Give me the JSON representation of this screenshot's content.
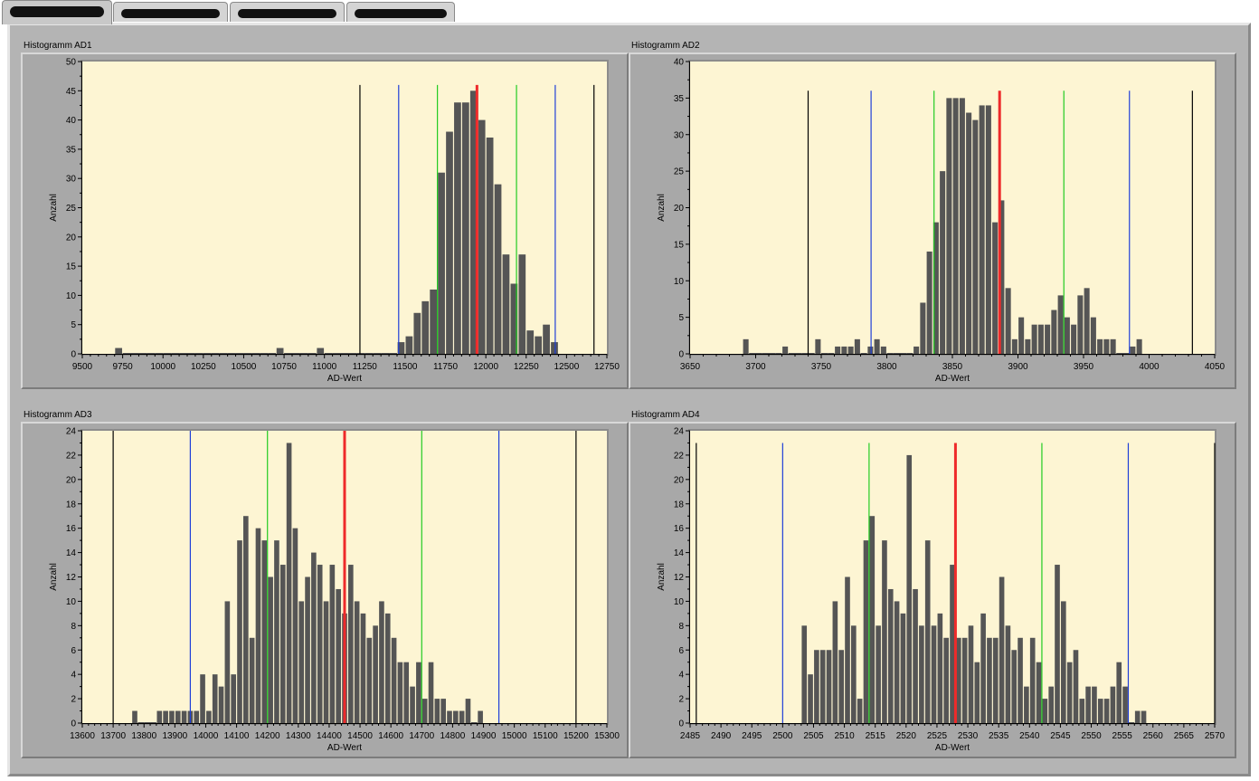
{
  "tabs": [
    {
      "label": ""
    },
    {
      "label": ""
    },
    {
      "label": ""
    },
    {
      "label": ""
    }
  ],
  "charts": [
    {
      "title": "Histogramm AD1",
      "chart_data": {
        "type": "bar",
        "xlabel": "AD-Wert",
        "ylabel": "Anzahl",
        "xlim": [
          9500,
          12750
        ],
        "ylim": [
          0,
          50
        ],
        "xticks": [
          9500,
          9750,
          10000,
          10250,
          10500,
          10750,
          11000,
          11250,
          11500,
          11750,
          12000,
          12250,
          12500,
          12750
        ],
        "yticks": [
          0,
          5,
          10,
          15,
          20,
          25,
          30,
          35,
          40,
          45,
          50
        ],
        "bin_width": 50,
        "bins": [
          [
            9700,
            1
          ],
          [
            9750,
            0
          ],
          [
            9800,
            0
          ],
          [
            9850,
            0
          ],
          [
            9900,
            0
          ],
          [
            9950,
            0
          ],
          [
            10000,
            0
          ],
          [
            10050,
            0
          ],
          [
            10100,
            0
          ],
          [
            10150,
            0
          ],
          [
            10200,
            0
          ],
          [
            10250,
            0
          ],
          [
            10300,
            0
          ],
          [
            10350,
            0
          ],
          [
            10400,
            0
          ],
          [
            10450,
            0
          ],
          [
            10500,
            0
          ],
          [
            10550,
            0
          ],
          [
            10600,
            0
          ],
          [
            10650,
            0
          ],
          [
            10700,
            1
          ],
          [
            10750,
            0
          ],
          [
            10800,
            0
          ],
          [
            10850,
            0
          ],
          [
            10900,
            0
          ],
          [
            10950,
            1
          ],
          [
            11000,
            0
          ],
          [
            11050,
            0
          ],
          [
            11100,
            0
          ],
          [
            11150,
            0
          ],
          [
            11200,
            0
          ],
          [
            11250,
            0
          ],
          [
            11300,
            0
          ],
          [
            11350,
            0
          ],
          [
            11400,
            0
          ],
          [
            11450,
            2
          ],
          [
            11500,
            3
          ],
          [
            11550,
            7
          ],
          [
            11600,
            9
          ],
          [
            11650,
            11
          ],
          [
            11700,
            31
          ],
          [
            11750,
            38
          ],
          [
            11800,
            43
          ],
          [
            11850,
            43
          ],
          [
            11900,
            45
          ],
          [
            11950,
            40
          ],
          [
            12000,
            37
          ],
          [
            12050,
            29
          ],
          [
            12100,
            17
          ],
          [
            12150,
            12
          ],
          [
            12200,
            17
          ],
          [
            12250,
            4
          ],
          [
            12300,
            3
          ],
          [
            12350,
            5
          ],
          [
            12400,
            2
          ]
        ],
        "markers": [
          {
            "x": 11220,
            "color": "#000000"
          },
          {
            "x": 11460,
            "color": "#1f3fd8"
          },
          {
            "x": 11700,
            "color": "#22cc22"
          },
          {
            "x": 11945,
            "color": "#ee2a2a"
          },
          {
            "x": 12190,
            "color": "#22cc22"
          },
          {
            "x": 12430,
            "color": "#1f3fd8"
          },
          {
            "x": 12670,
            "color": "#000000"
          }
        ],
        "marker_top": 46
      }
    },
    {
      "title": "Histogramm AD2",
      "chart_data": {
        "type": "bar",
        "xlabel": "AD-Wert",
        "ylabel": "Anzahl",
        "xlim": [
          3650,
          4050
        ],
        "ylim": [
          0,
          40
        ],
        "xticks": [
          3650,
          3700,
          3750,
          3800,
          3850,
          3900,
          3950,
          4000,
          4050
        ],
        "yticks": [
          0,
          5,
          10,
          15,
          20,
          25,
          30,
          35,
          40
        ],
        "bin_width": 5,
        "bins": [
          [
            3690,
            2
          ],
          [
            3695,
            0
          ],
          [
            3700,
            0
          ],
          [
            3705,
            0
          ],
          [
            3710,
            0
          ],
          [
            3715,
            0
          ],
          [
            3720,
            1
          ],
          [
            3725,
            0
          ],
          [
            3730,
            0
          ],
          [
            3735,
            0
          ],
          [
            3740,
            0
          ],
          [
            3745,
            2
          ],
          [
            3750,
            0
          ],
          [
            3755,
            0
          ],
          [
            3760,
            1
          ],
          [
            3765,
            1
          ],
          [
            3770,
            1
          ],
          [
            3775,
            2
          ],
          [
            3780,
            0
          ],
          [
            3785,
            1
          ],
          [
            3790,
            2
          ],
          [
            3795,
            1
          ],
          [
            3800,
            0
          ],
          [
            3805,
            0
          ],
          [
            3810,
            0
          ],
          [
            3815,
            0
          ],
          [
            3820,
            1
          ],
          [
            3825,
            7
          ],
          [
            3830,
            14
          ],
          [
            3835,
            18
          ],
          [
            3840,
            25
          ],
          [
            3845,
            35
          ],
          [
            3850,
            35
          ],
          [
            3855,
            35
          ],
          [
            3860,
            33
          ],
          [
            3865,
            32
          ],
          [
            3870,
            34
          ],
          [
            3875,
            34
          ],
          [
            3880,
            18
          ],
          [
            3885,
            21
          ],
          [
            3890,
            9
          ],
          [
            3895,
            2
          ],
          [
            3900,
            5
          ],
          [
            3905,
            2
          ],
          [
            3910,
            4
          ],
          [
            3915,
            4
          ],
          [
            3920,
            4
          ],
          [
            3925,
            6
          ],
          [
            3930,
            8
          ],
          [
            3935,
            5
          ],
          [
            3940,
            4
          ],
          [
            3945,
            8
          ],
          [
            3950,
            9
          ],
          [
            3955,
            5
          ],
          [
            3960,
            2
          ],
          [
            3965,
            2
          ],
          [
            3970,
            2
          ],
          [
            3975,
            0
          ],
          [
            3980,
            0
          ],
          [
            3985,
            1
          ],
          [
            3990,
            2
          ]
        ],
        "markers": [
          {
            "x": 3740,
            "color": "#000000"
          },
          {
            "x": 3788,
            "color": "#1f3fd8"
          },
          {
            "x": 3836,
            "color": "#22cc22"
          },
          {
            "x": 3886,
            "color": "#ee2a2a"
          },
          {
            "x": 3935,
            "color": "#22cc22"
          },
          {
            "x": 3985,
            "color": "#1f3fd8"
          },
          {
            "x": 4033,
            "color": "#000000"
          }
        ],
        "marker_top": 36
      }
    },
    {
      "title": "Histogramm AD3",
      "chart_data": {
        "type": "bar",
        "xlabel": "AD-Wert",
        "ylabel": "Anzahl",
        "xlim": [
          13600,
          15300
        ],
        "ylim": [
          0,
          24
        ],
        "xticks": [
          13600,
          13700,
          13800,
          13900,
          14000,
          14100,
          14200,
          14300,
          14400,
          14500,
          14600,
          14700,
          14800,
          14900,
          15000,
          15100,
          15200,
          15300
        ],
        "yticks": [
          0,
          2,
          4,
          6,
          8,
          10,
          12,
          14,
          16,
          18,
          20,
          22,
          24
        ],
        "bin_width": 20,
        "bins": [
          [
            13760,
            1
          ],
          [
            13780,
            0
          ],
          [
            13800,
            0
          ],
          [
            13820,
            0
          ],
          [
            13840,
            1
          ],
          [
            13860,
            1
          ],
          [
            13880,
            1
          ],
          [
            13900,
            1
          ],
          [
            13920,
            1
          ],
          [
            13940,
            1
          ],
          [
            13960,
            1
          ],
          [
            13980,
            4
          ],
          [
            14000,
            1
          ],
          [
            14020,
            4
          ],
          [
            14040,
            3
          ],
          [
            14060,
            10
          ],
          [
            14080,
            4
          ],
          [
            14100,
            15
          ],
          [
            14120,
            17
          ],
          [
            14140,
            7
          ],
          [
            14160,
            16
          ],
          [
            14180,
            15
          ],
          [
            14200,
            12
          ],
          [
            14220,
            15
          ],
          [
            14240,
            13
          ],
          [
            14260,
            23
          ],
          [
            14280,
            16
          ],
          [
            14300,
            10
          ],
          [
            14320,
            12
          ],
          [
            14340,
            14
          ],
          [
            14360,
            13
          ],
          [
            14380,
            10
          ],
          [
            14400,
            13
          ],
          [
            14420,
            11
          ],
          [
            14440,
            9
          ],
          [
            14460,
            13
          ],
          [
            14480,
            10
          ],
          [
            14500,
            9
          ],
          [
            14520,
            7
          ],
          [
            14540,
            8
          ],
          [
            14560,
            10
          ],
          [
            14580,
            9
          ],
          [
            14600,
            7
          ],
          [
            14620,
            5
          ],
          [
            14640,
            5
          ],
          [
            14660,
            3
          ],
          [
            14680,
            5
          ],
          [
            14700,
            2
          ],
          [
            14720,
            5
          ],
          [
            14740,
            2
          ],
          [
            14760,
            2
          ],
          [
            14780,
            1
          ],
          [
            14800,
            1
          ],
          [
            14820,
            1
          ],
          [
            14840,
            2
          ],
          [
            14860,
            0
          ],
          [
            14880,
            1
          ]
        ],
        "markers": [
          {
            "x": 13700,
            "color": "#000000"
          },
          {
            "x": 13950,
            "color": "#1f3fd8"
          },
          {
            "x": 14200,
            "color": "#22cc22"
          },
          {
            "x": 14450,
            "color": "#ee2a2a"
          },
          {
            "x": 14700,
            "color": "#22cc22"
          },
          {
            "x": 14950,
            "color": "#1f3fd8"
          },
          {
            "x": 15200,
            "color": "#000000"
          }
        ],
        "marker_top": 24
      }
    },
    {
      "title": "Histogramm AD4",
      "chart_data": {
        "type": "bar",
        "xlabel": "AD-Wert",
        "ylabel": "Anzahl",
        "xlim": [
          2485,
          2570
        ],
        "ylim": [
          0,
          24
        ],
        "xticks": [
          2485,
          2490,
          2495,
          2500,
          2505,
          2510,
          2515,
          2520,
          2525,
          2530,
          2535,
          2540,
          2545,
          2550,
          2555,
          2560,
          2565,
          2570
        ],
        "yticks": [
          0,
          2,
          4,
          6,
          8,
          10,
          12,
          14,
          16,
          18,
          20,
          22,
          24
        ],
        "bin_width": 1,
        "bins": [
          [
            2503,
            8
          ],
          [
            2504,
            4
          ],
          [
            2505,
            6
          ],
          [
            2506,
            6
          ],
          [
            2507,
            6
          ],
          [
            2508,
            10
          ],
          [
            2509,
            6
          ],
          [
            2510,
            12
          ],
          [
            2511,
            8
          ],
          [
            2512,
            2
          ],
          [
            2513,
            15
          ],
          [
            2514,
            17
          ],
          [
            2515,
            8
          ],
          [
            2516,
            15
          ],
          [
            2517,
            11
          ],
          [
            2518,
            10
          ],
          [
            2519,
            9
          ],
          [
            2520,
            22
          ],
          [
            2521,
            11
          ],
          [
            2522,
            8
          ],
          [
            2523,
            15
          ],
          [
            2524,
            8
          ],
          [
            2525,
            9
          ],
          [
            2526,
            7
          ],
          [
            2527,
            13
          ],
          [
            2528,
            7
          ],
          [
            2529,
            7
          ],
          [
            2530,
            8
          ],
          [
            2531,
            5
          ],
          [
            2532,
            9
          ],
          [
            2533,
            7
          ],
          [
            2534,
            7
          ],
          [
            2535,
            12
          ],
          [
            2536,
            8
          ],
          [
            2537,
            6
          ],
          [
            2538,
            7
          ],
          [
            2539,
            3
          ],
          [
            2540,
            7
          ],
          [
            2541,
            5
          ],
          [
            2542,
            2
          ],
          [
            2543,
            3
          ],
          [
            2544,
            13
          ],
          [
            2545,
            10
          ],
          [
            2546,
            5
          ],
          [
            2547,
            6
          ],
          [
            2548,
            2
          ],
          [
            2549,
            3
          ],
          [
            2550,
            3
          ],
          [
            2551,
            2
          ],
          [
            2552,
            2
          ],
          [
            2553,
            3
          ],
          [
            2554,
            5
          ],
          [
            2555,
            3
          ],
          [
            2556,
            0
          ],
          [
            2557,
            1
          ],
          [
            2558,
            1
          ]
        ],
        "markers": [
          {
            "x": 2486,
            "color": "#000000"
          },
          {
            "x": 2500,
            "color": "#1f3fd8"
          },
          {
            "x": 2514,
            "color": "#22cc22"
          },
          {
            "x": 2528,
            "color": "#ee2a2a"
          },
          {
            "x": 2542,
            "color": "#22cc22"
          },
          {
            "x": 2556,
            "color": "#1f3fd8"
          },
          {
            "x": 2570,
            "color": "#000000"
          }
        ],
        "marker_top": 23
      }
    }
  ],
  "colors": {
    "plot_bg": "#fdf5d3",
    "bar": "#555555",
    "panel_bg": "#b4b4b4"
  }
}
